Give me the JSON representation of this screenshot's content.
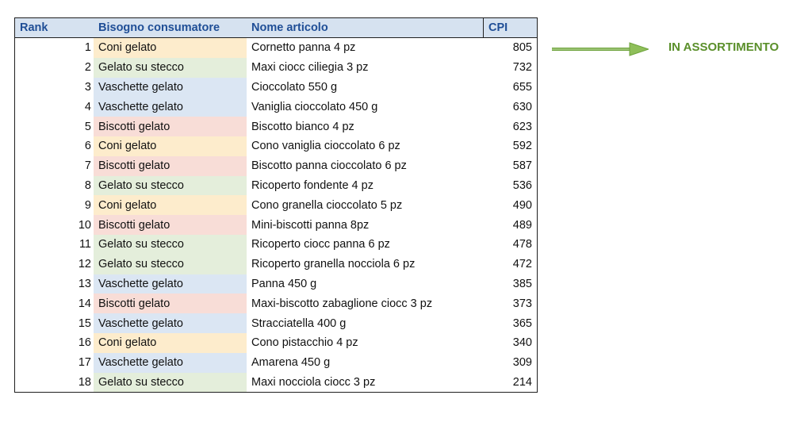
{
  "table": {
    "headers": {
      "rank": "Rank",
      "need": "Bisogno consumatore",
      "item": "Nome articolo",
      "cpi": "CPI"
    },
    "rows": [
      {
        "rank": "1",
        "need": "Coni gelato",
        "item": "Cornetto panna  4 pz",
        "cpi": "805"
      },
      {
        "rank": "2",
        "need": "Gelato su stecco",
        "item": "Maxi ciocc ciliegia 3 pz",
        "cpi": "732"
      },
      {
        "rank": "3",
        "need": "Vaschette gelato",
        "item": "Cioccolato 550 g",
        "cpi": "655"
      },
      {
        "rank": "4",
        "need": "Vaschette gelato",
        "item": "Vaniglia cioccolato 450 g",
        "cpi": "630"
      },
      {
        "rank": "5",
        "need": "Biscotti gelato",
        "item": "Biscotto bianco 4 pz",
        "cpi": "623"
      },
      {
        "rank": "6",
        "need": "Coni gelato",
        "item": "Cono vaniglia cioccolato 6 pz",
        "cpi": "592"
      },
      {
        "rank": "7",
        "need": "Biscotti gelato",
        "item": "Biscotto panna cioccolato 6 pz",
        "cpi": "587"
      },
      {
        "rank": "8",
        "need": "Gelato su stecco",
        "item": "Ricoperto fondente 4 pz",
        "cpi": "536"
      },
      {
        "rank": "9",
        "need": "Coni gelato",
        "item": "Cono granella cioccolato 5 pz",
        "cpi": "490"
      },
      {
        "rank": "10",
        "need": "Biscotti gelato",
        "item": "Mini-biscotti panna 8pz",
        "cpi": "489"
      },
      {
        "rank": "11",
        "need": "Gelato su stecco",
        "item": "Ricoperto ciocc panna 6 pz",
        "cpi": "478"
      },
      {
        "rank": "12",
        "need": "Gelato su stecco",
        "item": "Ricoperto granella nocciola 6 pz",
        "cpi": "472"
      },
      {
        "rank": "13",
        "need": "Vaschette gelato",
        "item": "Panna 450 g",
        "cpi": "385"
      },
      {
        "rank": "14",
        "need": "Biscotti gelato",
        "item": "Maxi-biscotto zabaglione ciocc 3 pz",
        "cpi": "373"
      },
      {
        "rank": "15",
        "need": "Vaschette gelato",
        "item": "Stracciatella 400 g",
        "cpi": "365"
      },
      {
        "rank": "16",
        "need": "Coni gelato",
        "item": "Cono pistacchio 4 pz",
        "cpi": "340"
      },
      {
        "rank": "17",
        "need": "Vaschette gelato",
        "item": "Amarena 450 g",
        "cpi": "309"
      },
      {
        "rank": "18",
        "need": "Gelato su stecco",
        "item": "Maxi nocciola ciocc 3 pz",
        "cpi": "214"
      }
    ]
  },
  "annotation": {
    "label": "IN ASSORTIMENTO",
    "color": "#5a8f2a",
    "icon": "arrow-right-icon"
  },
  "colors": {
    "header_bg": "#d6e2f0",
    "header_text": "#1f4e96",
    "Coni gelato": "#fdeccc",
    "Gelato su stecco": "#e4eedb",
    "Vaschette gelato": "#dbe6f3",
    "Biscotti gelato": "#f8ddd7"
  }
}
